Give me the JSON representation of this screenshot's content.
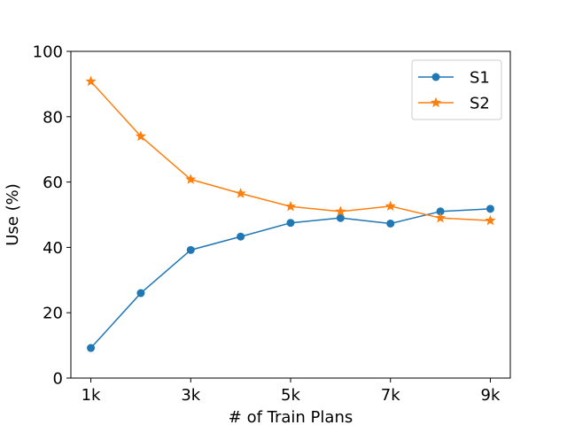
{
  "chart_data": {
    "type": "line",
    "title": "",
    "xlabel": "# of Train Plans",
    "ylabel": "Use (%)",
    "x": [
      1,
      2,
      3,
      4,
      5,
      6,
      7,
      8,
      9
    ],
    "xticks": [
      1,
      3,
      5,
      7,
      9
    ],
    "xtick_labels": [
      "1k",
      "3k",
      "5k",
      "7k",
      "9k"
    ],
    "xlim": [
      0.6,
      9.4
    ],
    "ylim": [
      0,
      100
    ],
    "yticks": [
      0,
      20,
      40,
      60,
      80,
      100
    ],
    "ytick_labels": [
      "0",
      "20",
      "40",
      "60",
      "80",
      "100"
    ],
    "grid": false,
    "legend_position": "upper right",
    "series": [
      {
        "name": "S1",
        "marker": "circle",
        "color": "#1f77b4",
        "values": [
          9.2,
          26.0,
          39.2,
          43.3,
          47.5,
          49.0,
          47.3,
          51.0,
          51.8
        ]
      },
      {
        "name": "S2",
        "marker": "star",
        "color": "#ff7f0e",
        "values": [
          90.8,
          74.0,
          60.8,
          56.5,
          52.5,
          51.0,
          52.6,
          49.0,
          48.2
        ]
      }
    ]
  }
}
